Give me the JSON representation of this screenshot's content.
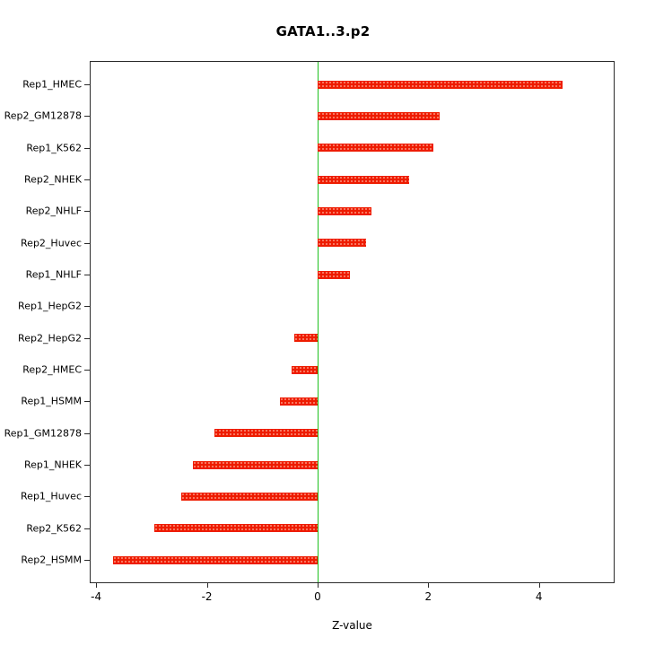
{
  "chart_data": {
    "type": "bar",
    "orientation": "horizontal",
    "title": "GATA1..3.p2",
    "xlabel": "Z-value",
    "ylabel": "",
    "categories": [
      "Rep1_HMEC",
      "Rep2_GM12878",
      "Rep1_K562",
      "Rep2_NHEK",
      "Rep2_NHLF",
      "Rep2_Huvec",
      "Rep1_NHLF",
      "Rep1_HepG2",
      "Rep2_HepG2",
      "Rep2_HMEC",
      "Rep1_HSMM",
      "Rep1_GM12878",
      "Rep1_NHEK",
      "Rep1_Huvec",
      "Rep2_K562",
      "Rep2_HSMM"
    ],
    "values": [
      4.42,
      2.2,
      2.1,
      1.65,
      0.97,
      0.87,
      0.58,
      0.0,
      -0.42,
      -0.47,
      -0.68,
      -1.87,
      -2.26,
      -2.47,
      -2.95,
      -3.7
    ],
    "xlim": [
      -4.1,
      5.35
    ],
    "xticks": [
      -4,
      -2,
      0,
      2,
      4
    ],
    "bar_color": "#ee1c00",
    "zero_line_color": "#1ec11e",
    "axis_color": "#2b2b2b",
    "grid": false,
    "legend": null
  }
}
